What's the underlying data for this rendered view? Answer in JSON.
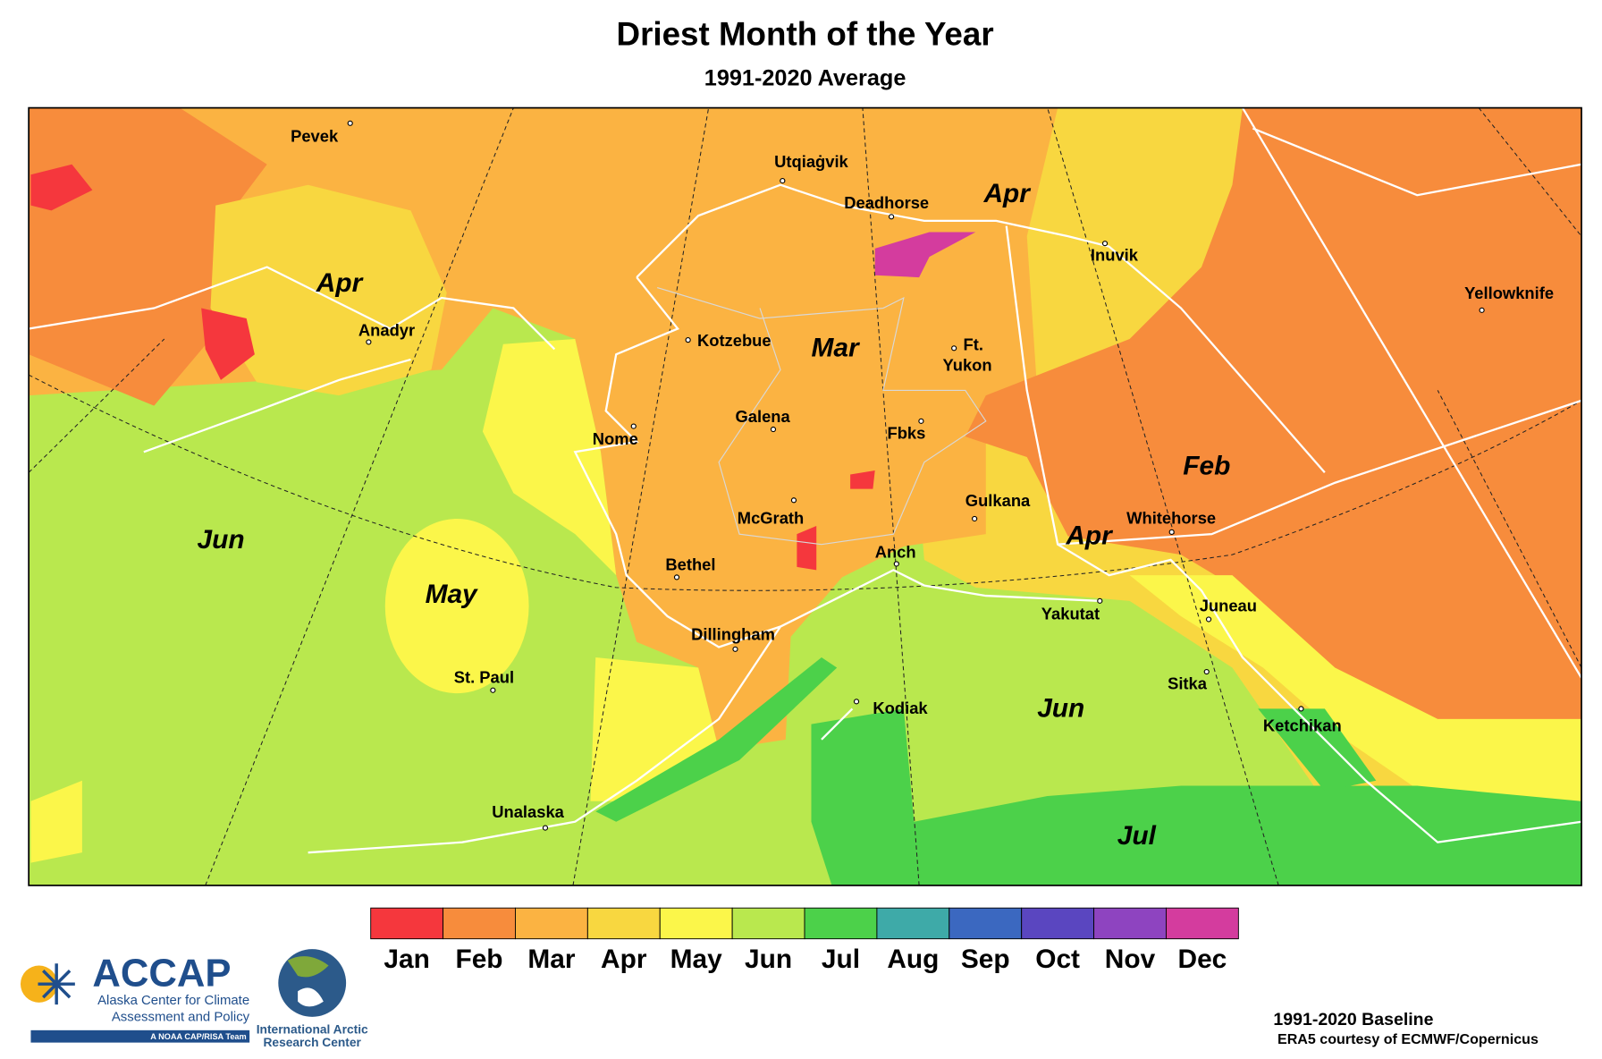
{
  "title": "Driest Month of the Year",
  "subtitle": "1991-2020 Average",
  "region_labels": [
    "Apr",
    "Apr",
    "Mar",
    "Feb",
    "Apr",
    "Jun",
    "May",
    "Jun",
    "Jul"
  ],
  "places": [
    "Pevek",
    "Utqiaġvik",
    "Deadhorse",
    "Inuvik",
    "Yellowknife",
    "Anadyr",
    "Kotzebue",
    "Ft.",
    "Yukon",
    "Galena",
    "Nome",
    "Fbks",
    "Gulkana",
    "McGrath",
    "Whitehorse",
    "Bethel",
    "Anch",
    "Yakutat",
    "Juneau",
    "Dillingham",
    "St. Paul",
    "Sitka",
    "Kodiak",
    "Ketchikan",
    "Unalaska"
  ],
  "legend": [
    {
      "name": "Jan",
      "color": "#f5373d"
    },
    {
      "name": "Feb",
      "color": "#f78c3c"
    },
    {
      "name": "Mar",
      "color": "#fbb342"
    },
    {
      "name": "Apr",
      "color": "#f8d740"
    },
    {
      "name": "May",
      "color": "#fbf64a"
    },
    {
      "name": "Jun",
      "color": "#b9e84e"
    },
    {
      "name": "Jul",
      "color": "#4cd14a"
    },
    {
      "name": "Aug",
      "color": "#3eaaa8"
    },
    {
      "name": "Sep",
      "color": "#3b68c0"
    },
    {
      "name": "Oct",
      "color": "#5a46c0"
    },
    {
      "name": "Nov",
      "color": "#8e44c0"
    },
    {
      "name": "Dec",
      "color": "#d43c9e"
    }
  ],
  "footer": {
    "baseline": "1991-2020 Baseline",
    "credit": "ERA5 courtesy of ECMWF/Copernicus"
  },
  "logos": {
    "accap": "ACCAP",
    "accap_line1": "Alaska Center for Climate",
    "accap_line2": "Assessment and Policy",
    "accap_tag": "A NOAA CAP/RISA Team",
    "iarc_line1": "International Arctic",
    "iarc_line2": "Research Center"
  }
}
